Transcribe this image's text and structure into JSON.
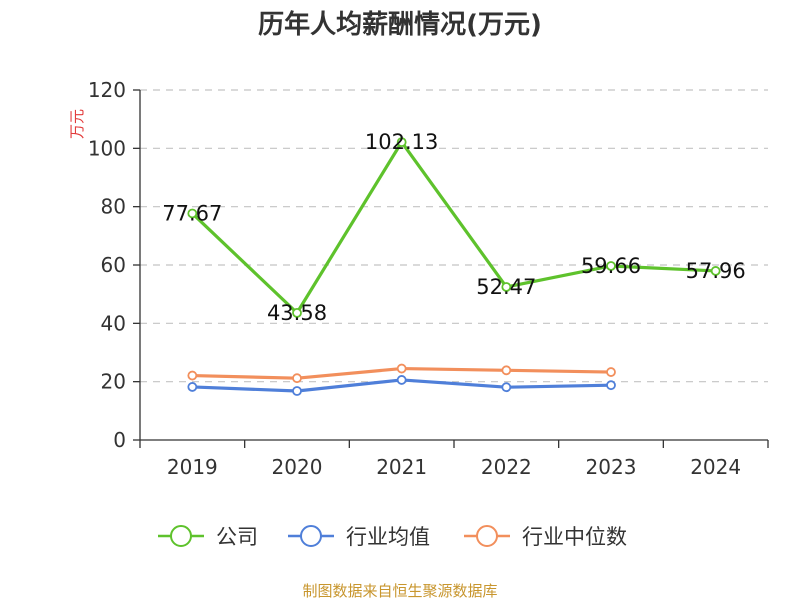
{
  "title": "历年人均薪酬情况(万元)",
  "source_text": "制图数据来自恒生聚源数据库",
  "chart_data": {
    "type": "line",
    "title": "历年人均薪酬情况(万元)",
    "ylabel": "万元",
    "xlabel": "",
    "ylim": [
      0,
      120
    ],
    "yticks": [
      0,
      20,
      40,
      60,
      80,
      100,
      120
    ],
    "categories": [
      "2019",
      "2020",
      "2021",
      "2022",
      "2023",
      "2024"
    ],
    "grid": true,
    "legend_position": "bottom",
    "series": [
      {
        "name": "公司",
        "color": "#5ec22c",
        "values": [
          77.67,
          43.58,
          102.13,
          52.47,
          59.66,
          57.96
        ],
        "labels": [
          "77.67",
          "43.58",
          "102.13",
          "52.47",
          "59.66",
          "57.96"
        ]
      },
      {
        "name": "行业均值",
        "color": "#4f7fd9",
        "values": [
          18.2,
          16.8,
          20.6,
          18.1,
          18.8,
          null
        ]
      },
      {
        "name": "行业中位数",
        "color": "#f28f5c",
        "values": [
          22.1,
          21.2,
          24.5,
          23.9,
          23.3,
          null
        ]
      }
    ]
  }
}
